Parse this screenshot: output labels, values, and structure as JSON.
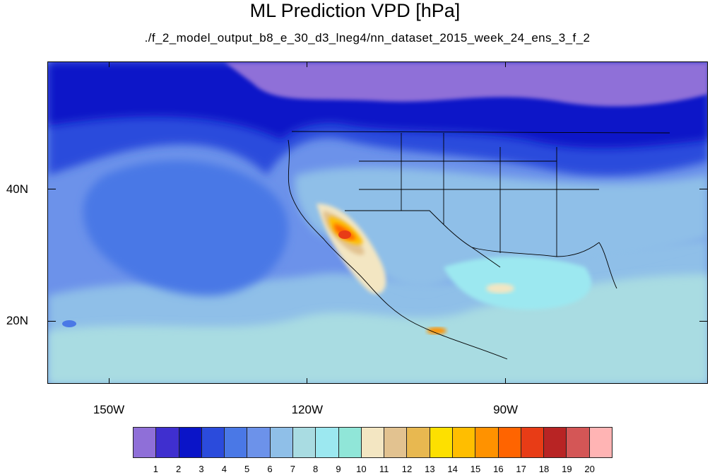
{
  "title": "ML Prediction VPD [hPa]",
  "subtitle": "./f_2_model_output_b8_e_30_d3_lneg4/nn_dataset_2015_week_24_ens_3_f_2",
  "chart_data": {
    "type": "heatmap",
    "title": "ML Prediction VPD [hPa]",
    "subtitle": "./f_2_model_output_b8_e_30_d3_lneg4/nn_dataset_2015_week_24_ens_3_f_2",
    "x_ticks": [
      {
        "lon": -150,
        "label": "150W"
      },
      {
        "lon": -120,
        "label": "120W"
      },
      {
        "lon": -90,
        "label": "90W"
      }
    ],
    "y_ticks": [
      {
        "lat": 40,
        "label": "40N"
      },
      {
        "lat": 20,
        "label": "20N"
      }
    ],
    "lon_range": [
      -159.3,
      -59.4
    ],
    "lat_range": [
      10.5,
      59.4
    ],
    "colorbar": {
      "levels": [
        1,
        2,
        3,
        4,
        5,
        6,
        7,
        8,
        9,
        10,
        11,
        12,
        13,
        14,
        15,
        16,
        17,
        18,
        19,
        20
      ],
      "colors": [
        "#8f6fd8",
        "#3f2fcf",
        "#0a14c8",
        "#2b4bdc",
        "#4a78e6",
        "#6c92ea",
        "#8fbfe8",
        "#a9dce2",
        "#9ce8f0",
        "#90e6d8",
        "#f3e6c2",
        "#e2c290",
        "#e8b850",
        "#fde000",
        "#ffbe00",
        "#ff9200",
        "#ff6400",
        "#e83c16",
        "#b82424",
        "#d45656",
        "#ffb4b4"
      ]
    }
  }
}
